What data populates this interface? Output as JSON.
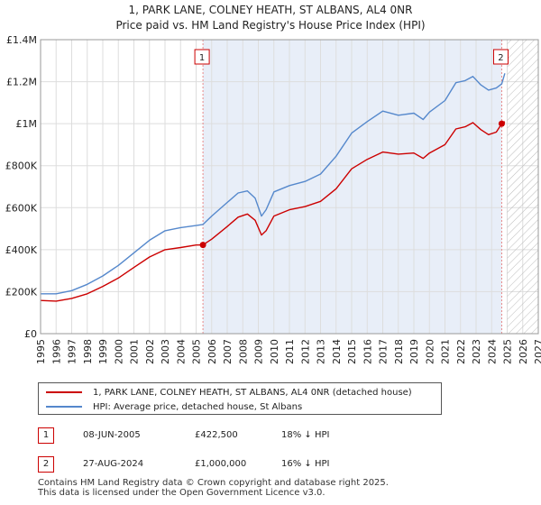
{
  "title": "1, PARK LANE, COLNEY HEATH, ST ALBANS, AL4 0NR",
  "subtitle": "Price paid vs. HM Land Registry's House Price Index (HPI)",
  "colors": {
    "property": "#cc0000",
    "hpi": "#5588cc",
    "shade": "#e8eef8",
    "grid": "#dddddd",
    "marker_line": "#e88888"
  },
  "chart_data": {
    "type": "line",
    "title": "1, PARK LANE, COLNEY HEATH, ST ALBANS, AL4 0NR",
    "subtitle": "Price paid vs. HM Land Registry's House Price Index (HPI)",
    "xlabel": "",
    "ylabel": "",
    "xlim": [
      1995,
      2027
    ],
    "ylim": [
      0,
      1400000
    ],
    "x_ticks": [
      "1995",
      "1996",
      "1997",
      "1998",
      "1999",
      "2000",
      "2001",
      "2002",
      "2003",
      "2004",
      "2005",
      "2006",
      "2007",
      "2008",
      "2009",
      "2010",
      "2011",
      "2012",
      "2013",
      "2014",
      "2015",
      "2016",
      "2017",
      "2018",
      "2019",
      "2020",
      "2021",
      "2022",
      "2023",
      "2024",
      "2025",
      "2026",
      "2027"
    ],
    "y_ticks": [
      {
        "value": 0,
        "label": "£0"
      },
      {
        "value": 200000,
        "label": "£200K"
      },
      {
        "value": 400000,
        "label": "£400K"
      },
      {
        "value": 600000,
        "label": "£600K"
      },
      {
        "value": 800000,
        "label": "£800K"
      },
      {
        "value": 1000000,
        "label": "£1M"
      },
      {
        "value": 1200000,
        "label": "£1.2M"
      },
      {
        "value": 1400000,
        "label": "£1.4M"
      }
    ],
    "grid": true,
    "shaded_span": [
      2005.44,
      2024.65
    ],
    "hatched_from": 2025.0,
    "series": [
      {
        "name": "1, PARK LANE, COLNEY HEATH, ST ALBANS, AL4 0NR (detached house)",
        "x": [
          1995,
          1996,
          1997,
          1998,
          1999,
          2000,
          2001,
          2002,
          2003,
          2004,
          2005,
          2005.44,
          2006,
          2007,
          2007.7,
          2008.3,
          2008.8,
          2009.2,
          2009.5,
          2010,
          2011,
          2012,
          2013,
          2014,
          2015,
          2016,
          2017,
          2018,
          2019,
          2019.6,
          2020,
          2021,
          2021.7,
          2022.3,
          2022.8,
          2023.3,
          2023.8,
          2024.3,
          2024.65,
          2024.85
        ],
        "values": [
          158000,
          155000,
          168000,
          190000,
          225000,
          265000,
          315000,
          365000,
          400000,
          410000,
          422000,
          422500,
          450000,
          510000,
          555000,
          570000,
          540000,
          470000,
          490000,
          560000,
          590000,
          605000,
          630000,
          690000,
          785000,
          830000,
          865000,
          855000,
          860000,
          835000,
          860000,
          900000,
          975000,
          985000,
          1005000,
          972000,
          948000,
          960000,
          1000000,
          1010000
        ]
      },
      {
        "name": "HPI: Average price, detached house, St Albans",
        "x": [
          1995,
          1996,
          1997,
          1998,
          1999,
          2000,
          2001,
          2002,
          2003,
          2004,
          2005,
          2005.44,
          2006,
          2007,
          2007.7,
          2008.3,
          2008.8,
          2009.2,
          2009.5,
          2010,
          2011,
          2012,
          2013,
          2014,
          2015,
          2016,
          2017,
          2018,
          2019,
          2019.6,
          2020,
          2021,
          2021.7,
          2022.3,
          2022.8,
          2023.3,
          2023.8,
          2024.3,
          2024.65,
          2024.85
        ],
        "values": [
          190000,
          190000,
          205000,
          235000,
          275000,
          325000,
          385000,
          445000,
          490000,
          505000,
          515000,
          520000,
          560000,
          625000,
          670000,
          680000,
          645000,
          560000,
          590000,
          675000,
          705000,
          725000,
          760000,
          845000,
          955000,
          1010000,
          1060000,
          1040000,
          1050000,
          1020000,
          1055000,
          1110000,
          1195000,
          1205000,
          1225000,
          1185000,
          1160000,
          1170000,
          1190000,
          1240000
        ]
      }
    ],
    "annotations": [
      {
        "label": "1",
        "x": 2005.44,
        "value": 422500
      },
      {
        "label": "2",
        "x": 2024.65,
        "value": 1000000
      }
    ]
  },
  "legend": {
    "property_label": "1, PARK LANE, COLNEY HEATH, ST ALBANS, AL4 0NR (detached house)",
    "hpi_label": "HPI: Average price, detached house, St Albans"
  },
  "sales": [
    {
      "num": "1",
      "date": "08-JUN-2005",
      "price": "£422,500",
      "hpi": "18% ↓ HPI"
    },
    {
      "num": "2",
      "date": "27-AUG-2024",
      "price": "£1,000,000",
      "hpi": "16% ↓ HPI"
    }
  ],
  "footer": {
    "line1": "Contains HM Land Registry data © Crown copyright and database right 2025.",
    "line2": "This data is licensed under the Open Government Licence v3.0."
  }
}
